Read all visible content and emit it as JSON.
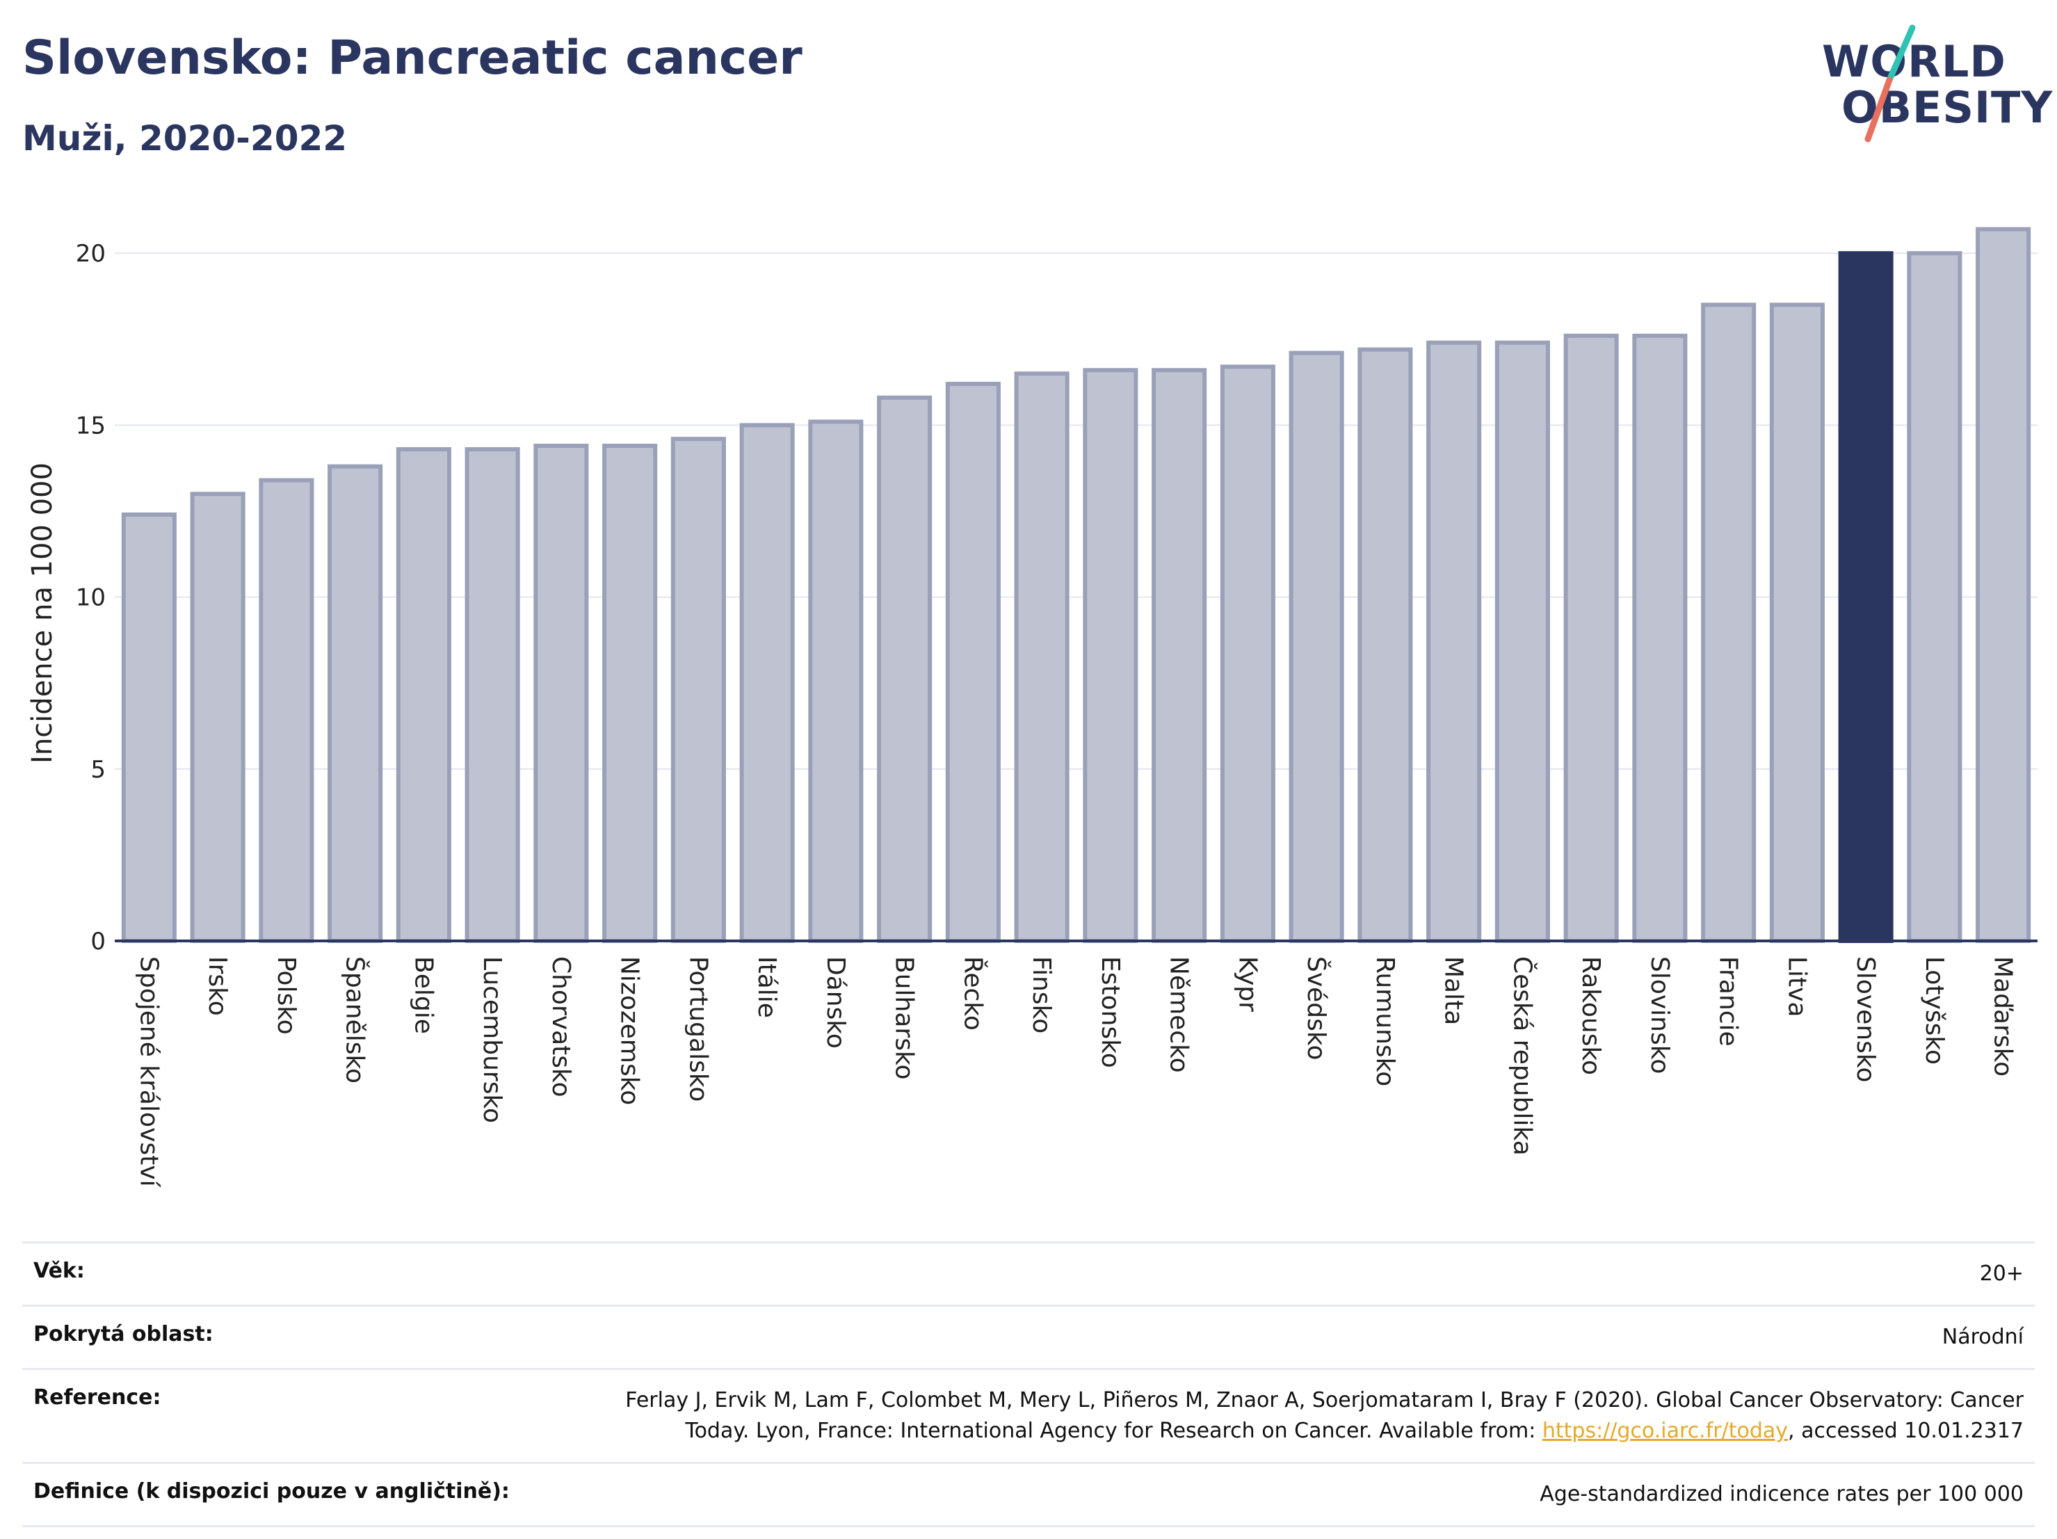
{
  "header": {
    "title": "Slovensko: Pancreatic cancer",
    "subtitle": "Muži, 2020-2022"
  },
  "logo": {
    "line1": "WORLD",
    "line2": "OBESITY",
    "accent_colors": [
      "#2fc3b3",
      "#e8705f"
    ]
  },
  "colors": {
    "bar": "#bfc3d1",
    "bar_border": "#9aa0b8",
    "highlight": "#2b3660",
    "grid": "#e3e6ee",
    "axis": "#2b3660"
  },
  "chart_data": {
    "type": "bar",
    "ylabel": "Incidence na 100 000",
    "xlabel": "",
    "ylim": [
      0,
      21.5
    ],
    "yticks": [
      0,
      5,
      10,
      15,
      20
    ],
    "grid": true,
    "highlight": "Slovensko",
    "categories": [
      "Spojené království",
      "Irsko",
      "Polsko",
      "Španělsko",
      "Belgie",
      "Lucembursko",
      "Chorvatsko",
      "Nizozemsko",
      "Portugalsko",
      "Itálie",
      "Dánsko",
      "Bulharsko",
      "Řecko",
      "Finsko",
      "Estonsko",
      "Německo",
      "Kypr",
      "Švédsko",
      "Rumunsko",
      "Malta",
      "Česká republika",
      "Rakousko",
      "Slovinsko",
      "Francie",
      "Litva",
      "Slovensko",
      "Lotyšsko",
      "Maďarsko"
    ],
    "values": [
      12.4,
      13.0,
      13.4,
      13.8,
      14.3,
      14.3,
      14.4,
      14.4,
      14.6,
      15.0,
      15.1,
      15.8,
      16.2,
      16.5,
      16.6,
      16.6,
      16.7,
      17.1,
      17.2,
      17.4,
      17.4,
      17.6,
      17.6,
      18.5,
      18.5,
      20.0,
      20.0,
      20.7
    ]
  },
  "meta": [
    {
      "key": "Věk:",
      "value": "20+"
    },
    {
      "key": "Pokrytá oblast:",
      "value": "Národní"
    },
    {
      "key": "Reference:",
      "value_line1": "Ferlay J, Ervik M, Lam F, Colombet M, Mery L, Piñeros M, Znaor A, Soerjomataram I, Bray F (2020). Global Cancer Observatory: Cancer",
      "value_pre": "Today. Lyon, France: International Agency for Research on Cancer. Available from: ",
      "link": "https://gco.iarc.fr/today",
      "value_post": ", accessed 10.01.2317"
    },
    {
      "key": "Definice (k dispozici pouze v angličtině):",
      "value": "Age-standardized indicence rates per 100 000"
    }
  ]
}
